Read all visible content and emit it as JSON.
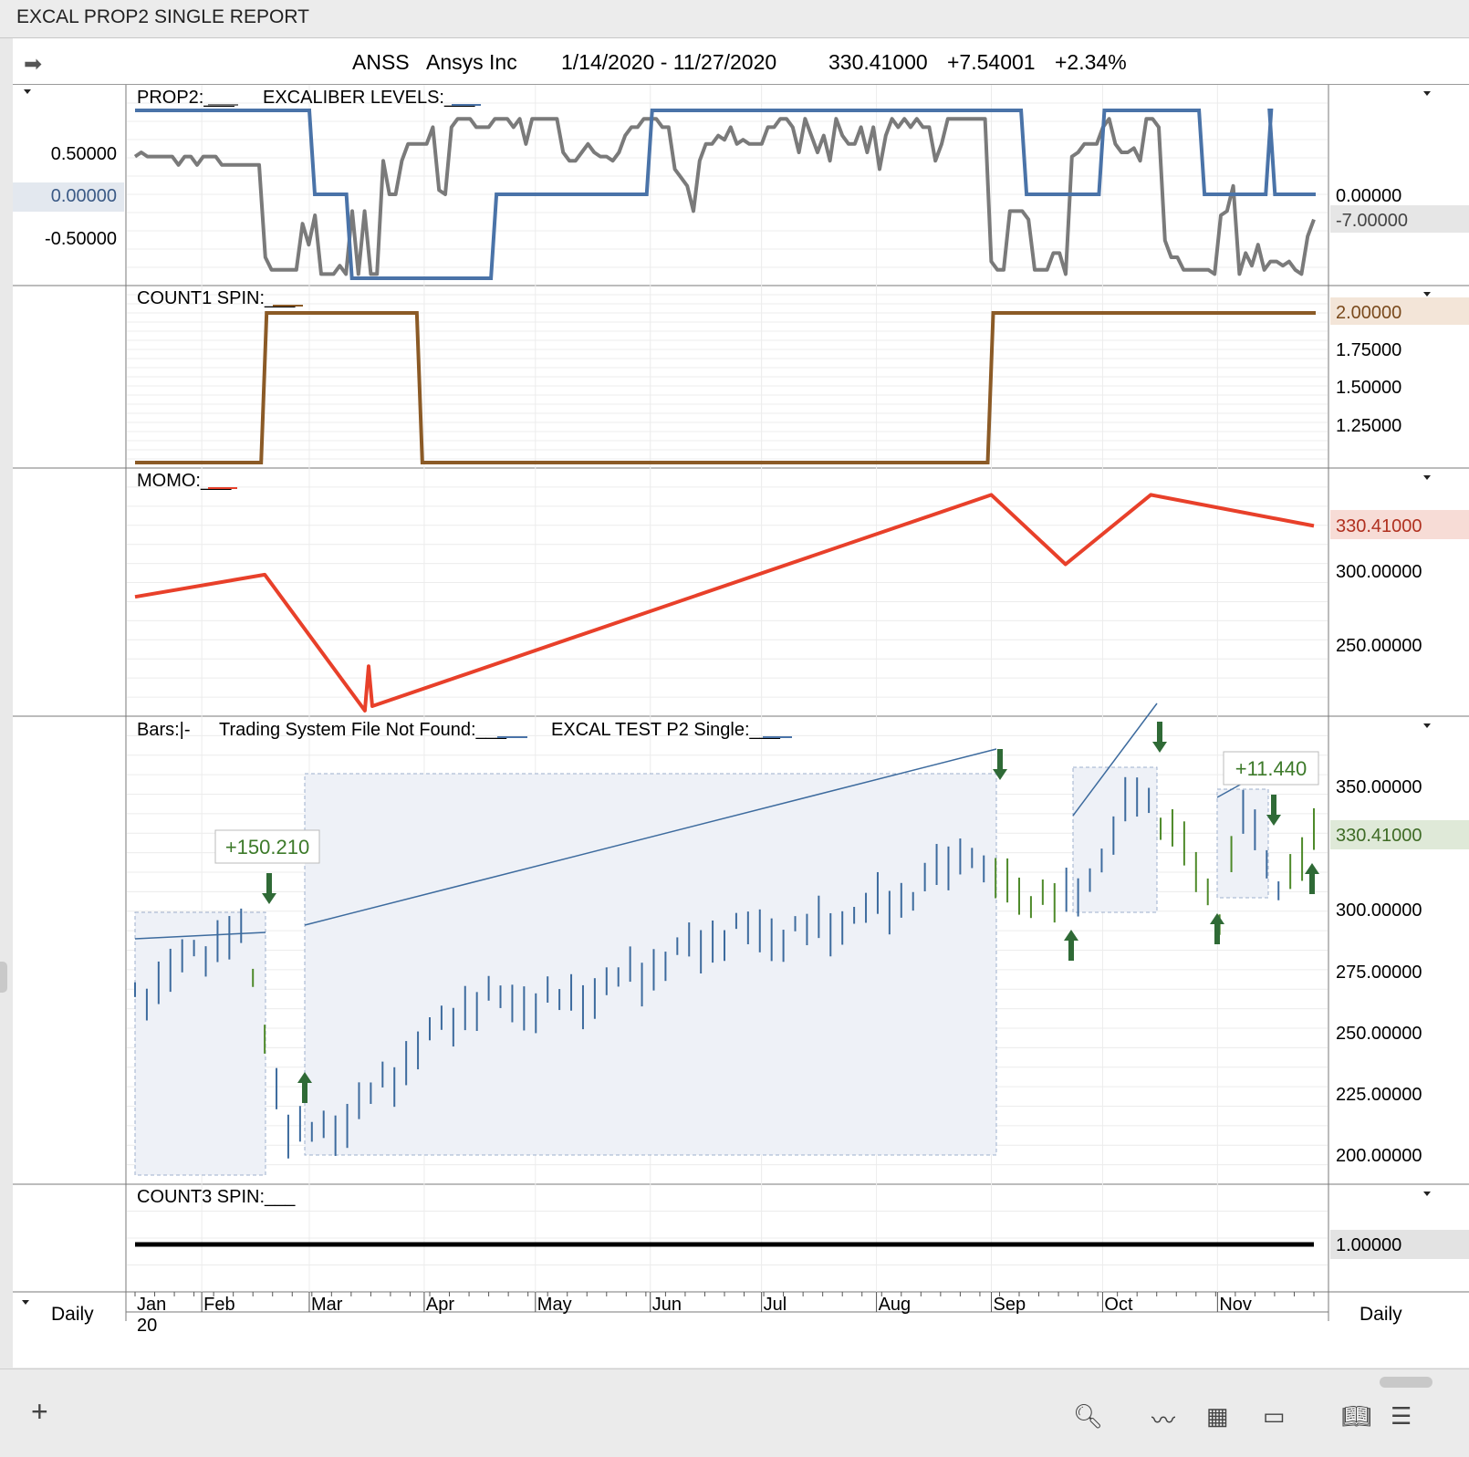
{
  "window": {
    "title": "EXCAL PROP2 SINGLE REPORT"
  },
  "header": {
    "symbol": "ANSS",
    "name": "Ansys Inc",
    "range": "1/14/2020 - 11/27/2020",
    "price": "330.41000",
    "change": "+7.54001",
    "change_pct": "+2.34%"
  },
  "colors": {
    "prop2": "#7a7a7a",
    "excaliber": "#4a73a8",
    "count1": "#8b5a26",
    "momo": "#e8402a",
    "bar_up": "#3d6b9e",
    "bar_down": "#4e8a2a",
    "arrow": "#2f6a36",
    "count3": "#000000"
  },
  "panes": {
    "prop2": {
      "legend": [
        "PROP2:___",
        "EXCALIBER LEVELS:___"
      ],
      "left_ticks": [
        "0.50000",
        "0.00000",
        "-0.50000"
      ],
      "right_ticks": [
        "0.00000"
      ],
      "right_marker": "-7.00000"
    },
    "count1": {
      "legend": [
        "COUNT1 SPIN:___"
      ],
      "right_ticks": [
        "1.75000",
        "1.50000",
        "1.25000"
      ],
      "right_marker": "2.00000"
    },
    "momo": {
      "legend": [
        "MOMO:___"
      ],
      "right_ticks": [
        "300.00000",
        "250.00000"
      ],
      "right_marker": "330.41000"
    },
    "bars": {
      "legend": [
        "Bars:|-",
        "Trading System File Not Found:___",
        "EXCAL TEST P2 Single:___"
      ],
      "right_ticks": [
        "350.00000",
        "300.00000",
        "275.00000",
        "250.00000",
        "225.00000",
        "200.00000"
      ],
      "right_marker": "330.41000",
      "trade_labels": [
        "+150.210",
        "+11.440"
      ]
    },
    "count3": {
      "legend": [
        "COUNT3 SPIN:___"
      ],
      "right_marker": "1.00000"
    }
  },
  "axis": {
    "months": [
      "Jan",
      "Feb",
      "Mar",
      "Apr",
      "May",
      "Jun",
      "Jul",
      "Aug",
      "Sep",
      "Oct",
      "Nov"
    ],
    "year": "20",
    "period_left": "Daily",
    "period_right": "Daily"
  },
  "chart_data": {
    "type": "line",
    "x_range": [
      "1/14/2020",
      "11/27/2020"
    ],
    "series": [
      {
        "name": "PROP2",
        "pane": "prop2",
        "values": [
          0.45,
          0.5,
          0.45,
          0.45,
          0.45,
          0.45,
          0.45,
          0.35,
          0.45,
          0.45,
          0.35,
          0.45,
          0.45,
          0.45,
          0.35,
          0.35,
          0.35,
          0.35,
          0.35,
          0.35,
          0.35,
          -0.75,
          -0.9,
          -0.9,
          -0.9,
          -0.9,
          -0.9,
          -0.35,
          -0.6,
          -0.25,
          -0.95,
          -0.95,
          -0.95,
          -0.85,
          -0.95,
          -0.2,
          -0.95,
          -0.2,
          -0.95,
          -0.95,
          0.4,
          0.0,
          0.0,
          0.4,
          0.6,
          0.6,
          0.6,
          0.6,
          0.8,
          0.05,
          0.0,
          0.8,
          0.9,
          0.9,
          0.9,
          0.8,
          0.8,
          0.8,
          0.9,
          0.9,
          0.9,
          0.8,
          0.9,
          0.6,
          0.9,
          0.9,
          0.9,
          0.9,
          0.9,
          0.5,
          0.4,
          0.4,
          0.5,
          0.6,
          0.5,
          0.45,
          0.45,
          0.4,
          0.5,
          0.7,
          0.8,
          0.8,
          0.9,
          0.9,
          0.9,
          0.8,
          0.8,
          0.3,
          0.2,
          0.1,
          -0.2,
          0.4,
          0.6,
          0.6,
          0.7,
          0.65,
          0.8,
          0.6,
          0.65,
          0.6,
          0.6,
          0.6,
          0.8,
          0.8,
          0.9,
          0.9,
          0.8,
          0.5,
          0.9,
          0.7,
          0.5,
          0.7,
          0.4,
          0.9,
          0.7,
          0.6,
          0.6,
          0.8,
          0.5,
          0.8,
          0.3,
          0.7,
          0.9,
          0.8,
          0.9,
          0.8,
          0.9,
          0.8,
          0.8,
          0.4,
          0.6,
          0.9,
          0.9,
          0.9,
          0.9,
          0.9,
          0.9,
          0.9,
          -0.8,
          -0.9,
          -0.9,
          -0.2,
          -0.2,
          -0.2,
          -0.3,
          -0.9,
          -0.9,
          -0.9,
          -0.7,
          -0.7,
          -0.95,
          0.45,
          0.5,
          0.6,
          0.6,
          0.6,
          0.8,
          0.9,
          0.6,
          0.5,
          0.5,
          0.55,
          0.4,
          0.9,
          0.9,
          0.8,
          -0.55,
          -0.75,
          -0.75,
          -0.9,
          -0.9,
          -0.9,
          -0.9,
          -0.9,
          -0.95,
          -0.25,
          -0.2,
          0.1,
          -0.95,
          -0.7,
          -0.85,
          -0.6,
          -0.9,
          -0.8,
          -0.8,
          -0.85,
          -0.8,
          -0.9,
          -0.95,
          -0.5,
          -0.3
        ]
      },
      {
        "name": "EXCALIBER LEVELS",
        "pane": "prop2",
        "steps": [
          [
            "1/14/2020",
            1
          ],
          [
            "3/2/2020",
            0
          ],
          [
            "3/12/2020",
            -1
          ],
          [
            "4/20/2020",
            0
          ],
          [
            "6/1/2020",
            1
          ],
          [
            "9/4/2020",
            1
          ],
          [
            "9/10/2020",
            0
          ],
          [
            "10/1/2020",
            1
          ],
          [
            "10/28/2020",
            0
          ],
          [
            "11/15/2020",
            1
          ],
          [
            "11/16/2020",
            0
          ],
          [
            "11/27/2020",
            0
          ]
        ]
      },
      {
        "name": "COUNT1 SPIN",
        "pane": "count1",
        "steps": [
          [
            "1/14/2020",
            1
          ],
          [
            "2/18/2020",
            2
          ],
          [
            "3/31/2020",
            1
          ],
          [
            "9/1/2020",
            2
          ],
          [
            "11/27/2020",
            2
          ]
        ]
      },
      {
        "name": "MOMO",
        "pane": "momo",
        "points": [
          [
            "1/14/2020",
            282
          ],
          [
            "2/18/2020",
            297
          ],
          [
            "3/16/2020",
            205
          ],
          [
            "3/17/2020",
            235
          ],
          [
            "3/18/2020",
            208
          ],
          [
            "9/1/2020",
            351
          ],
          [
            "9/21/2020",
            304
          ],
          [
            "10/14/2020",
            351
          ],
          [
            "11/27/2020",
            330
          ]
        ]
      },
      {
        "name": "COUNT3 SPIN",
        "pane": "count3",
        "value": 1
      }
    ]
  }
}
